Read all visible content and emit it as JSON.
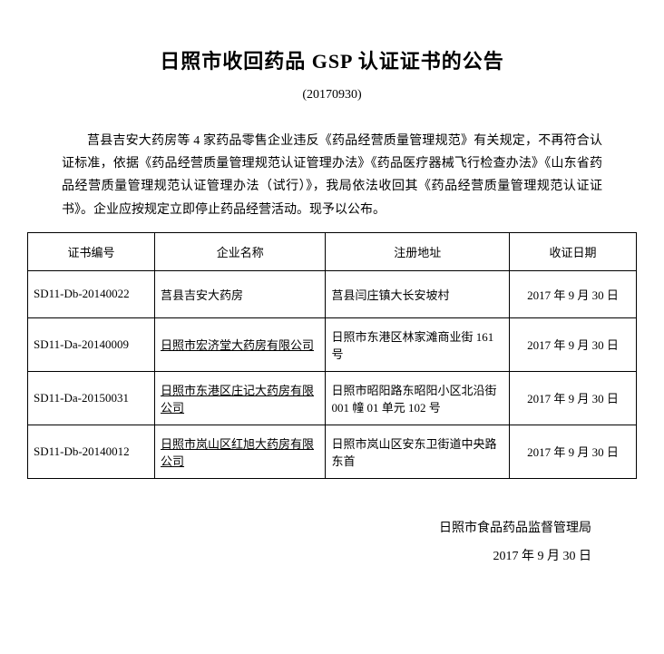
{
  "title": "日照市收回药品 GSP 认证证书的公告",
  "dateLine": "(20170930)",
  "paragraph": "莒县吉安大药房等 4 家药品零售企业违反《药品经营质量管理规范》有关规定，不再符合认证标准，依据《药品经营质量管理规范认证管理办法》《药品医疗器械飞行检查办法》《山东省药品经营质量管理规范认证管理办法（试行）》，我局依法收回其《药品经营质量管理规范认证证书》。企业应按规定立即停止药品经营活动。现予以公布。",
  "headers": {
    "cert": "证书编号",
    "company": "企业名称",
    "address": "注册地址",
    "date": "收证日期"
  },
  "rows": [
    {
      "cert": "SD11-Db-20140022",
      "company": "莒县吉安大药房",
      "address": "莒县闫庄镇大长安坡村",
      "date": "2017 年 9 月 30 日",
      "underlineCompany": false
    },
    {
      "cert": "SD11-Da-20140009",
      "company": "日照市宏济堂大药房有限公司",
      "address": "日照市东港区林家滩商业街 161号",
      "date": "2017 年 9 月 30 日",
      "underlineCompany": true
    },
    {
      "cert": "SD11-Da-20150031",
      "company": "日照市东港区庄记大药房有限公司",
      "address": "日照市昭阳路东昭阳小区北沿街 001 幢 01 单元 102 号",
      "date": "2017 年 9 月 30 日",
      "underlineCompany": true
    },
    {
      "cert": "SD11-Db-20140012",
      "company": "日照市岚山区红旭大药房有限公司",
      "address": "日照市岚山区安东卫街道中央路东首",
      "date": "2017 年 9 月 30 日",
      "underlineCompany": true
    }
  ],
  "footer": {
    "agency": "日照市食品药品监督管理局",
    "date": "2017 年 9 月 30 日"
  },
  "colors": {
    "background": "#ffffff",
    "text": "#000000",
    "border": "#000000"
  },
  "typography": {
    "titleFontSize": 22,
    "bodyFontSize": 14,
    "tableFontSize": 13,
    "fontFamily": "SimSun"
  }
}
